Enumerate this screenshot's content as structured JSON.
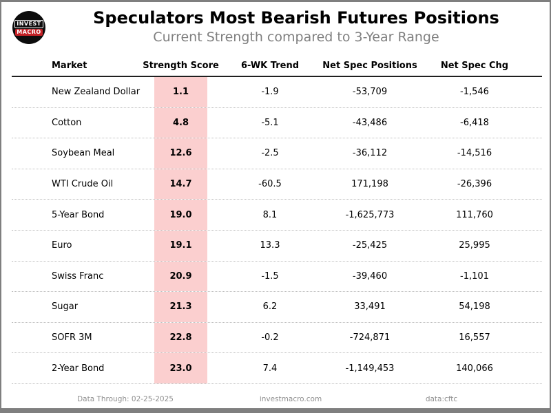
{
  "logo": {
    "line1": "INVEST",
    "line2": "MACRO"
  },
  "header": {
    "title": "Speculators Most Bearish Futures Positions",
    "subtitle": "Current Strength compared to 3-Year Range"
  },
  "chart_data": {
    "type": "table",
    "title": "Speculators Most Bearish Futures Positions",
    "subtitle": "Current Strength compared to 3-Year Range",
    "columns": [
      "Market",
      "Strength Score",
      "6-WK Trend",
      "Net Spec Positions",
      "Net Spec Chg"
    ],
    "rows": [
      {
        "market": "New Zealand Dollar",
        "score": "1.1",
        "trend": "-1.9",
        "positions": "-53,709",
        "chg": "-1,546"
      },
      {
        "market": "Cotton",
        "score": "4.8",
        "trend": "-5.1",
        "positions": "-43,486",
        "chg": "-6,418"
      },
      {
        "market": "Soybean Meal",
        "score": "12.6",
        "trend": "-2.5",
        "positions": "-36,112",
        "chg": "-14,516"
      },
      {
        "market": "WTI Crude Oil",
        "score": "14.7",
        "trend": "-60.5",
        "positions": "171,198",
        "chg": "-26,396"
      },
      {
        "market": "5-Year Bond",
        "score": "19.0",
        "trend": "8.1",
        "positions": "-1,625,773",
        "chg": "111,760"
      },
      {
        "market": "Euro",
        "score": "19.1",
        "trend": "13.3",
        "positions": "-25,425",
        "chg": "25,995"
      },
      {
        "market": "Swiss Franc",
        "score": "20.9",
        "trend": "-1.5",
        "positions": "-39,460",
        "chg": "-1,101"
      },
      {
        "market": "Sugar",
        "score": "21.3",
        "trend": "6.2",
        "positions": "33,491",
        "chg": "54,198"
      },
      {
        "market": "SOFR 3M",
        "score": "22.8",
        "trend": "-0.2",
        "positions": "-724,871",
        "chg": "16,557"
      },
      {
        "market": "2-Year Bond",
        "score": "23.0",
        "trend": "7.4",
        "positions": "-1,149,453",
        "chg": "140,066"
      }
    ],
    "highlighted_column": "Strength Score"
  },
  "footer": {
    "data_through": "Data Through: 02-25-2025",
    "website": "investmacro.com",
    "source": "data:cftc"
  },
  "colors": {
    "score_highlight_pink": "#fbcfcf",
    "logo_red": "#c42126",
    "logo_black": "#0d0d0d",
    "subtitle_gray": "#7f7f7f",
    "footer_gray": "#8f8f8f",
    "frame_gray": "#7f7f7f"
  }
}
